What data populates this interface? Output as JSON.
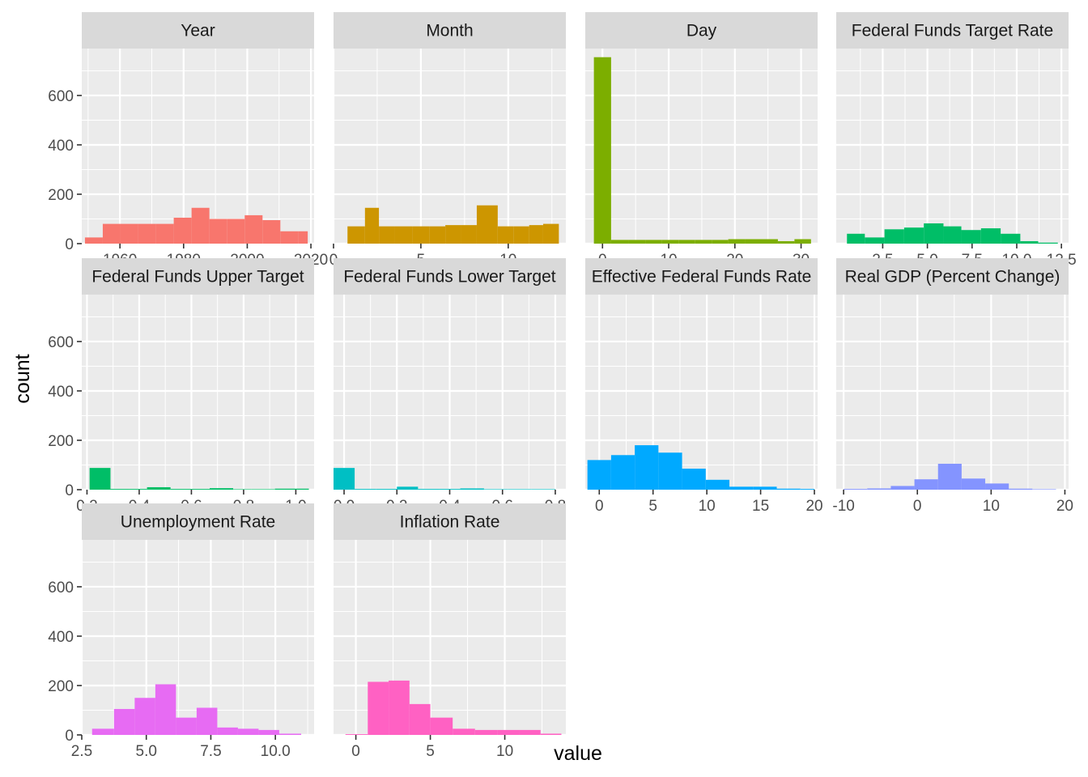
{
  "chart_data": {
    "type": "bar",
    "subtype": "faceted-histogram",
    "xlabel": "value",
    "ylabel": "count",
    "y_ticks": [
      "0",
      "200",
      "400",
      "600"
    ],
    "ylim": [
      0,
      790
    ],
    "y_tick_values": [
      0,
      200,
      400,
      600
    ],
    "grid": true,
    "legend": "none",
    "panels": [
      {
        "title": "Year",
        "color": "#F8766D",
        "xlim": [
          1948.0,
          2021.0
        ],
        "x_ticks": [
          {
            "v": 1960,
            "t": "1960"
          },
          {
            "v": 1980,
            "t": "1980"
          },
          {
            "v": 2000,
            "t": "2000"
          },
          {
            "v": 2020,
            "t": "2020"
          }
        ],
        "bins": [
          [
            1949.0,
            1954.6,
            25
          ],
          [
            1954.6,
            1960.2,
            80
          ],
          [
            1960.2,
            1965.7,
            80
          ],
          [
            1965.7,
            1971.3,
            80
          ],
          [
            1971.3,
            1976.9,
            80
          ],
          [
            1976.9,
            1982.5,
            105
          ],
          [
            1982.5,
            1988.1,
            145
          ],
          [
            1988.1,
            1993.6,
            100
          ],
          [
            1993.6,
            1999.2,
            100
          ],
          [
            1999.2,
            2004.8,
            115
          ],
          [
            2004.8,
            2010.4,
            95
          ],
          [
            2010.4,
            2016.0,
            50
          ],
          [
            2016.0,
            2019.0,
            50
          ]
        ]
      },
      {
        "title": "Month",
        "color": "#CD9600",
        "xlim": [
          0.0,
          13.3
        ],
        "x_ticks": [
          {
            "v": 0,
            "t": "0"
          },
          {
            "v": 5,
            "t": "5"
          },
          {
            "v": 10,
            "t": "10"
          }
        ],
        "bins": [
          [
            0.8,
            1.8,
            70
          ],
          [
            1.8,
            2.6,
            145
          ],
          [
            2.6,
            3.5,
            70
          ],
          [
            3.5,
            4.5,
            70
          ],
          [
            4.5,
            5.5,
            70
          ],
          [
            5.5,
            6.4,
            70
          ],
          [
            6.4,
            7.3,
            75
          ],
          [
            7.3,
            8.2,
            75
          ],
          [
            8.2,
            9.4,
            155
          ],
          [
            9.4,
            10.3,
            70
          ],
          [
            10.3,
            11.2,
            70
          ],
          [
            11.2,
            12.0,
            75
          ],
          [
            12.0,
            12.9,
            80
          ]
        ]
      },
      {
        "title": "Day",
        "color": "#7CAE00",
        "xlim": [
          -2.6,
          32.5
        ],
        "x_ticks": [
          {
            "v": 0,
            "t": "0"
          },
          {
            "v": 10,
            "t": "10"
          },
          {
            "v": 20,
            "t": "20"
          },
          {
            "v": 30,
            "t": "30"
          }
        ],
        "bins": [
          [
            -1.3,
            1.3,
            755
          ],
          [
            1.3,
            4.0,
            15
          ],
          [
            4.0,
            6.5,
            15
          ],
          [
            6.5,
            9.0,
            15
          ],
          [
            9.0,
            11.5,
            15
          ],
          [
            11.5,
            14.0,
            15
          ],
          [
            14.0,
            16.5,
            15
          ],
          [
            16.5,
            19.0,
            15
          ],
          [
            19.0,
            21.5,
            18
          ],
          [
            21.5,
            24.0,
            18
          ],
          [
            24.0,
            26.5,
            18
          ],
          [
            26.5,
            29.0,
            10
          ],
          [
            29.0,
            31.5,
            18
          ]
        ]
      },
      {
        "title": "Federal Funds Target Rate",
        "color": "#00BE67",
        "xlim": [
          -0.1,
          12.9
        ],
        "x_ticks": [
          {
            "v": 2.5,
            "t": "2.5"
          },
          {
            "v": 5.0,
            "t": "5.0"
          },
          {
            "v": 7.5,
            "t": "7.5"
          },
          {
            "v": 10.0,
            "t": "10.0"
          },
          {
            "v": 12.5,
            "t": "12.5"
          }
        ],
        "bins": [
          [
            0.5,
            1.5,
            40
          ],
          [
            1.5,
            2.6,
            25
          ],
          [
            2.6,
            3.7,
            58
          ],
          [
            3.7,
            4.8,
            65
          ],
          [
            4.8,
            5.9,
            82
          ],
          [
            5.9,
            6.9,
            70
          ],
          [
            6.9,
            8.0,
            55
          ],
          [
            8.0,
            9.1,
            62
          ],
          [
            9.1,
            10.2,
            40
          ],
          [
            10.2,
            11.2,
            10
          ],
          [
            11.2,
            12.3,
            4
          ]
        ]
      },
      {
        "title": "Federal Funds Upper Target",
        "color": "#00BE67",
        "xlim": [
          0.18,
          1.07
        ],
        "x_ticks": [
          {
            "v": 0.2,
            "t": "0.2"
          },
          {
            "v": 0.4,
            "t": "0.4"
          },
          {
            "v": 0.6,
            "t": "0.6"
          },
          {
            "v": 0.8,
            "t": "0.8"
          },
          {
            "v": 1.0,
            "t": "1.0"
          }
        ],
        "bins": [
          [
            0.21,
            0.29,
            88
          ],
          [
            0.29,
            0.36,
            3
          ],
          [
            0.36,
            0.43,
            3
          ],
          [
            0.43,
            0.52,
            10
          ],
          [
            0.52,
            0.6,
            3
          ],
          [
            0.6,
            0.67,
            3
          ],
          [
            0.67,
            0.76,
            6
          ],
          [
            0.76,
            0.83,
            2
          ],
          [
            0.83,
            0.92,
            2
          ],
          [
            0.92,
            1.05,
            4
          ]
        ]
      },
      {
        "title": "Federal Funds Lower Target",
        "color": "#00BFC4",
        "xlim": [
          -0.04,
          0.84
        ],
        "x_ticks": [
          {
            "v": 0.0,
            "t": "0.0"
          },
          {
            "v": 0.2,
            "t": "0.2"
          },
          {
            "v": 0.4,
            "t": "0.4"
          },
          {
            "v": 0.6,
            "t": "0.6"
          },
          {
            "v": 0.8,
            "t": "0.8"
          }
        ],
        "bins": [
          [
            -0.04,
            0.04,
            88
          ],
          [
            0.04,
            0.12,
            3
          ],
          [
            0.12,
            0.2,
            3
          ],
          [
            0.2,
            0.28,
            12
          ],
          [
            0.28,
            0.36,
            3
          ],
          [
            0.36,
            0.44,
            3
          ],
          [
            0.44,
            0.53,
            5
          ],
          [
            0.53,
            0.62,
            2
          ],
          [
            0.62,
            0.71,
            2
          ],
          [
            0.71,
            0.8,
            2
          ]
        ]
      },
      {
        "title": "Effective Federal Funds Rate",
        "color": "#00A9FF",
        "xlim": [
          -1.3,
          20.3
        ],
        "x_ticks": [
          {
            "v": 0,
            "t": "0"
          },
          {
            "v": 5,
            "t": "5"
          },
          {
            "v": 10,
            "t": "10"
          },
          {
            "v": 15,
            "t": "15"
          },
          {
            "v": 20,
            "t": "20"
          }
        ],
        "bins": [
          [
            -1.1,
            1.1,
            120
          ],
          [
            1.1,
            3.3,
            140
          ],
          [
            3.3,
            5.5,
            180
          ],
          [
            5.5,
            7.7,
            150
          ],
          [
            7.7,
            9.9,
            85
          ],
          [
            9.9,
            12.1,
            40
          ],
          [
            12.1,
            14.3,
            12
          ],
          [
            14.3,
            16.5,
            12
          ],
          [
            16.5,
            18.7,
            4
          ],
          [
            18.7,
            20.0,
            3
          ]
        ]
      },
      {
        "title": "Real GDP (Percent Change)",
        "color": "#8494FF",
        "xlim": [
          -11.0,
          20.5
        ],
        "x_ticks": [
          {
            "v": -10,
            "t": "-10"
          },
          {
            "v": 0,
            "t": "0"
          },
          {
            "v": 10,
            "t": "10"
          },
          {
            "v": 20,
            "t": "20"
          }
        ],
        "bins": [
          [
            -10.0,
            -6.8,
            3
          ],
          [
            -6.8,
            -3.6,
            5
          ],
          [
            -3.6,
            -0.4,
            15
          ],
          [
            -0.4,
            2.8,
            42
          ],
          [
            2.8,
            6.0,
            105
          ],
          [
            6.0,
            9.2,
            45
          ],
          [
            9.2,
            12.4,
            25
          ],
          [
            12.4,
            15.6,
            4
          ],
          [
            15.6,
            18.8,
            2
          ]
        ]
      },
      {
        "title": "Unemployment Rate",
        "color": "#E76BF3",
        "xlim": [
          2.5,
          11.5
        ],
        "x_ticks": [
          {
            "v": 2.5,
            "t": "2.5"
          },
          {
            "v": 5.0,
            "t": "5.0"
          },
          {
            "v": 7.5,
            "t": "7.5"
          },
          {
            "v": 10.0,
            "t": "10.0"
          }
        ],
        "bins": [
          [
            2.9,
            3.75,
            25
          ],
          [
            3.75,
            4.55,
            105
          ],
          [
            4.55,
            5.35,
            150
          ],
          [
            5.35,
            6.15,
            205
          ],
          [
            6.15,
            6.95,
            70
          ],
          [
            6.95,
            7.75,
            110
          ],
          [
            7.75,
            8.55,
            30
          ],
          [
            8.55,
            9.35,
            25
          ],
          [
            9.35,
            10.15,
            20
          ],
          [
            10.15,
            11.0,
            5
          ]
        ]
      },
      {
        "title": "Inflation Rate",
        "color": "#FF61C3",
        "xlim": [
          -1.5,
          14.1
        ],
        "x_ticks": [
          {
            "v": 0,
            "t": "0"
          },
          {
            "v": 5,
            "t": "5"
          },
          {
            "v": 10,
            "t": "10"
          }
        ],
        "bins": [
          [
            -0.7,
            0.8,
            3
          ],
          [
            0.8,
            2.2,
            215
          ],
          [
            2.2,
            3.6,
            220
          ],
          [
            3.6,
            5.0,
            125
          ],
          [
            5.0,
            6.5,
            70
          ],
          [
            6.5,
            8.0,
            25
          ],
          [
            8.0,
            9.5,
            20
          ],
          [
            9.5,
            11.0,
            20
          ],
          [
            11.0,
            12.4,
            20
          ],
          [
            12.4,
            13.8,
            5
          ]
        ]
      }
    ]
  }
}
